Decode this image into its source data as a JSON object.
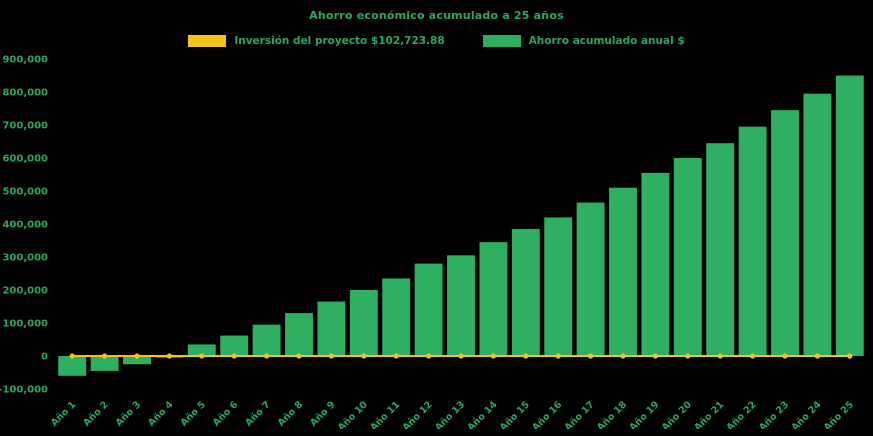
{
  "colors": {
    "background": "#000000",
    "text_green": "#27a85c",
    "bar_green": "#2eae60",
    "line_yellow": "#f2c41d"
  },
  "chart_data": {
    "type": "bar",
    "title": "Ahorro económico acumulado a 25 años",
    "categories": [
      "Año 1",
      "Año 2",
      "Año 3",
      "Año 4",
      "Año 5",
      "Año 6",
      "Año 7",
      "Año 8",
      "Año 9",
      "Año 10",
      "Año 11",
      "Año 12",
      "Año 13",
      "Año 14",
      "Año 15",
      "Año 16",
      "Año 17",
      "Año 18",
      "Año 19",
      "Año 20",
      "Año 21",
      "Año 22",
      "Año 23",
      "Año 24",
      "Año 25"
    ],
    "series": [
      {
        "name": "Inversión del proyecto $102,723.88",
        "type": "line",
        "color": "#f2c41d",
        "values": [
          0,
          0,
          0,
          0,
          0,
          0,
          0,
          0,
          0,
          0,
          0,
          0,
          0,
          0,
          0,
          0,
          0,
          0,
          0,
          0,
          0,
          0,
          0,
          0,
          0
        ]
      },
      {
        "name": "Ahorro acumulado anual $",
        "type": "bar",
        "color": "#2eae60",
        "values": [
          -60000,
          -45000,
          -25000,
          -5000,
          35000,
          62000,
          95000,
          130000,
          165000,
          200000,
          235000,
          280000,
          305000,
          345000,
          385000,
          420000,
          465000,
          510000,
          555000,
          600000,
          645000,
          695000,
          745000,
          795000,
          850000
        ]
      }
    ],
    "xlabel": "",
    "ylabel": "",
    "ylim": [
      -100000,
      900000
    ],
    "ytick_step": 100000,
    "grid": false,
    "legend_position": "top"
  }
}
